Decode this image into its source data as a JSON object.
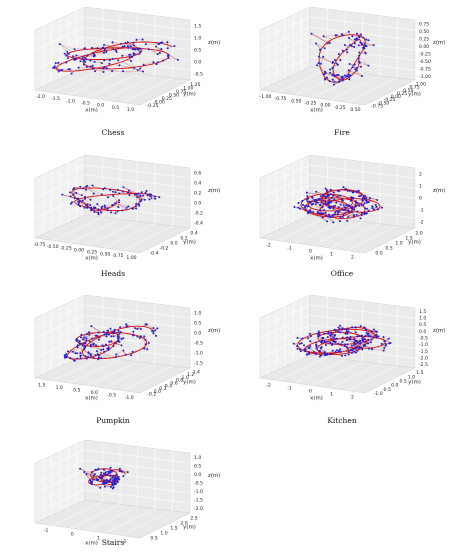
{
  "figure": {
    "colors": {
      "predicted": "#2222dd",
      "ground_truth": "#dd1111",
      "connector": "#555555",
      "pane": "#f1f1f1",
      "grid": "#ffffff"
    }
  },
  "chart_data": [
    {
      "type": "scatter",
      "title": "Chess",
      "xlabel": "x(m)",
      "ylabel": "y(m)",
      "zlabel": "z(m)",
      "xticks": [
        "-2.0",
        "-1.5",
        "-1.0",
        "-0.5",
        "0.0",
        "0.5",
        "1.0"
      ],
      "yticks": [
        "-0.25",
        "0.00",
        "0.25",
        "0.50",
        "0.75",
        "1.00",
        "1.25"
      ],
      "zticks": [
        "1.5",
        "1.0",
        "0.5",
        "0.0",
        "-0.5"
      ],
      "xlim": [
        -2.2,
        1.2
      ],
      "ylim": [
        -0.3,
        1.3
      ],
      "zlim": [
        -0.7,
        1.7
      ]
    },
    {
      "type": "scatter",
      "title": "Fire",
      "xlabel": "x(m)",
      "ylabel": "y(m)",
      "zlabel": "z(m)",
      "xticks": [
        "-1.00",
        "-0.75",
        "-0.50",
        "-0.25",
        "0.00",
        "0.25",
        "0.50"
      ],
      "yticks": [
        "-0.75",
        "-0.50",
        "-0.25",
        "0.00",
        "0.25",
        "0.50",
        "0.75",
        "1.00"
      ],
      "zticks": [
        "0.75",
        "0.50",
        "0.25",
        "0.00",
        "-0.25",
        "-0.50",
        "-0.75",
        "-1.00"
      ],
      "xlim": [
        -1.1,
        0.6
      ],
      "ylim": [
        -0.8,
        1.1
      ],
      "zlim": [
        -1.05,
        0.8
      ]
    },
    {
      "type": "scatter",
      "title": "Heads",
      "xlabel": "x(m)",
      "ylabel": "y(m)",
      "zlabel": "z(m)",
      "xticks": [
        "-0.75",
        "-0.50",
        "-0.25",
        "0.00",
        "0.25",
        "0.50",
        "0.75",
        "1.00"
      ],
      "yticks": [
        "-0.4",
        "-0.2",
        "0.0",
        "0.2",
        "0.4"
      ],
      "zticks": [
        "0.6",
        "0.4",
        "0.2",
        "0.0",
        "-0.2",
        "-0.4"
      ],
      "xlim": [
        -0.9,
        1.1
      ],
      "ylim": [
        -0.5,
        0.5
      ],
      "zlim": [
        -0.5,
        0.65
      ]
    },
    {
      "type": "scatter",
      "title": "Office",
      "xlabel": "x(m)",
      "ylabel": "y(m)",
      "zlabel": "z(m)",
      "xticks": [
        "-2",
        "-1",
        "0",
        "1",
        "2"
      ],
      "yticks": [
        "0.0",
        "0.5",
        "1.0",
        "1.5",
        "2.0"
      ],
      "zticks": [
        "2",
        "1",
        "0",
        "-1",
        "-2"
      ],
      "xlim": [
        -2.5,
        2.5
      ],
      "ylim": [
        -0.2,
        2.2
      ],
      "zlim": [
        -2.5,
        2.3
      ]
    },
    {
      "type": "scatter",
      "title": "Pumpkin",
      "xlabel": "x(m)",
      "ylabel": "y(m)",
      "zlabel": "z(m)",
      "xticks": [
        "1.5",
        "1.0",
        "0.5",
        "0.0",
        "-0.5",
        "-1.0"
      ],
      "yticks": [
        "-0.2",
        "0.0",
        "0.2",
        "0.4",
        "0.6",
        "0.8",
        "1.0",
        "1.2",
        "1.4"
      ],
      "zticks": [
        "1.0",
        "0.5",
        "0.0",
        "-0.5",
        "-1.0",
        "-1.5"
      ],
      "xlim": [
        -1.2,
        1.7
      ],
      "ylim": [
        -0.3,
        1.5
      ],
      "zlim": [
        -1.7,
        1.1
      ]
    },
    {
      "type": "scatter",
      "title": "Kitchen",
      "xlabel": "x(m)",
      "ylabel": "y(m)",
      "zlabel": "z(m)",
      "xticks": [
        "-2",
        "-1",
        "0",
        "1",
        "2"
      ],
      "yticks": [
        "-1.0",
        "-0.5",
        "0.0",
        "0.5",
        "1.0",
        "1.5"
      ],
      "zticks": [
        "1.5",
        "1.0",
        "0.5",
        "0.0",
        "-0.5",
        "-1.0",
        "-1.5",
        "-2.0",
        "-2.5"
      ],
      "xlim": [
        -2.6,
        2.6
      ],
      "ylim": [
        -1.2,
        1.7
      ],
      "zlim": [
        -2.7,
        1.7
      ]
    },
    {
      "type": "scatter",
      "title": "Stairs",
      "xlabel": "x(m)",
      "ylabel": "y(m)",
      "zlabel": "z(m)",
      "xticks": [
        "-1",
        "0",
        "1",
        "2"
      ],
      "yticks": [
        "0.5",
        "1.0",
        "1.5",
        "2.0",
        "2.5"
      ],
      "zticks": [
        "1.0",
        "0.5",
        "0.0",
        "-0.5",
        "-1.0",
        "-1.5",
        "-2.0"
      ],
      "xlim": [
        -1.5,
        2.5
      ],
      "ylim": [
        0.2,
        2.8
      ],
      "zlim": [
        -2.2,
        1.2
      ]
    }
  ]
}
